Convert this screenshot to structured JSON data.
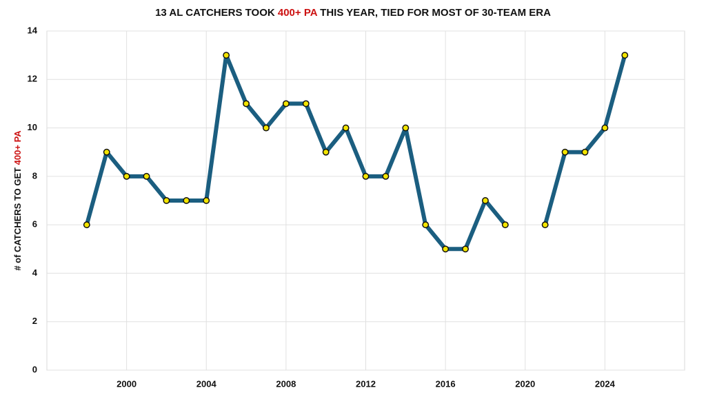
{
  "chart_data": {
    "type": "line",
    "title": [
      "13 AL CATCHERS TOOK ",
      "400+ PA",
      " THIS YEAR, TIED FOR MOST OF 30-TEAM ERA"
    ],
    "y_label": [
      "# of CATCHERS TO GET ",
      "400+ PA"
    ],
    "highlight_color": "#cc1111",
    "x": [
      1998,
      1999,
      2000,
      2001,
      2002,
      2003,
      2004,
      2005,
      2006,
      2007,
      2008,
      2009,
      2010,
      2011,
      2012,
      2013,
      2014,
      2015,
      2016,
      2017,
      2018,
      2019,
      2020,
      2021,
      2022,
      2023,
      2024,
      2025
    ],
    "series": [
      {
        "color": "#1b5e80",
        "marker_color": "#f2e400",
        "values": [
          6,
          9,
          8,
          8,
          7,
          7,
          7,
          13,
          11,
          10,
          11,
          11,
          9,
          10,
          8,
          8,
          10,
          6,
          5,
          5,
          7,
          6,
          null,
          6,
          9,
          9,
          10,
          13
        ]
      }
    ],
    "xlim": [
      1996,
      2028
    ],
    "xticks": [
      2000,
      2004,
      2008,
      2012,
      2016,
      2020,
      2024
    ],
    "ylim": [
      0,
      14
    ],
    "yticks": [
      0,
      2,
      4,
      6,
      8,
      10,
      12,
      14
    ],
    "grid": true
  }
}
